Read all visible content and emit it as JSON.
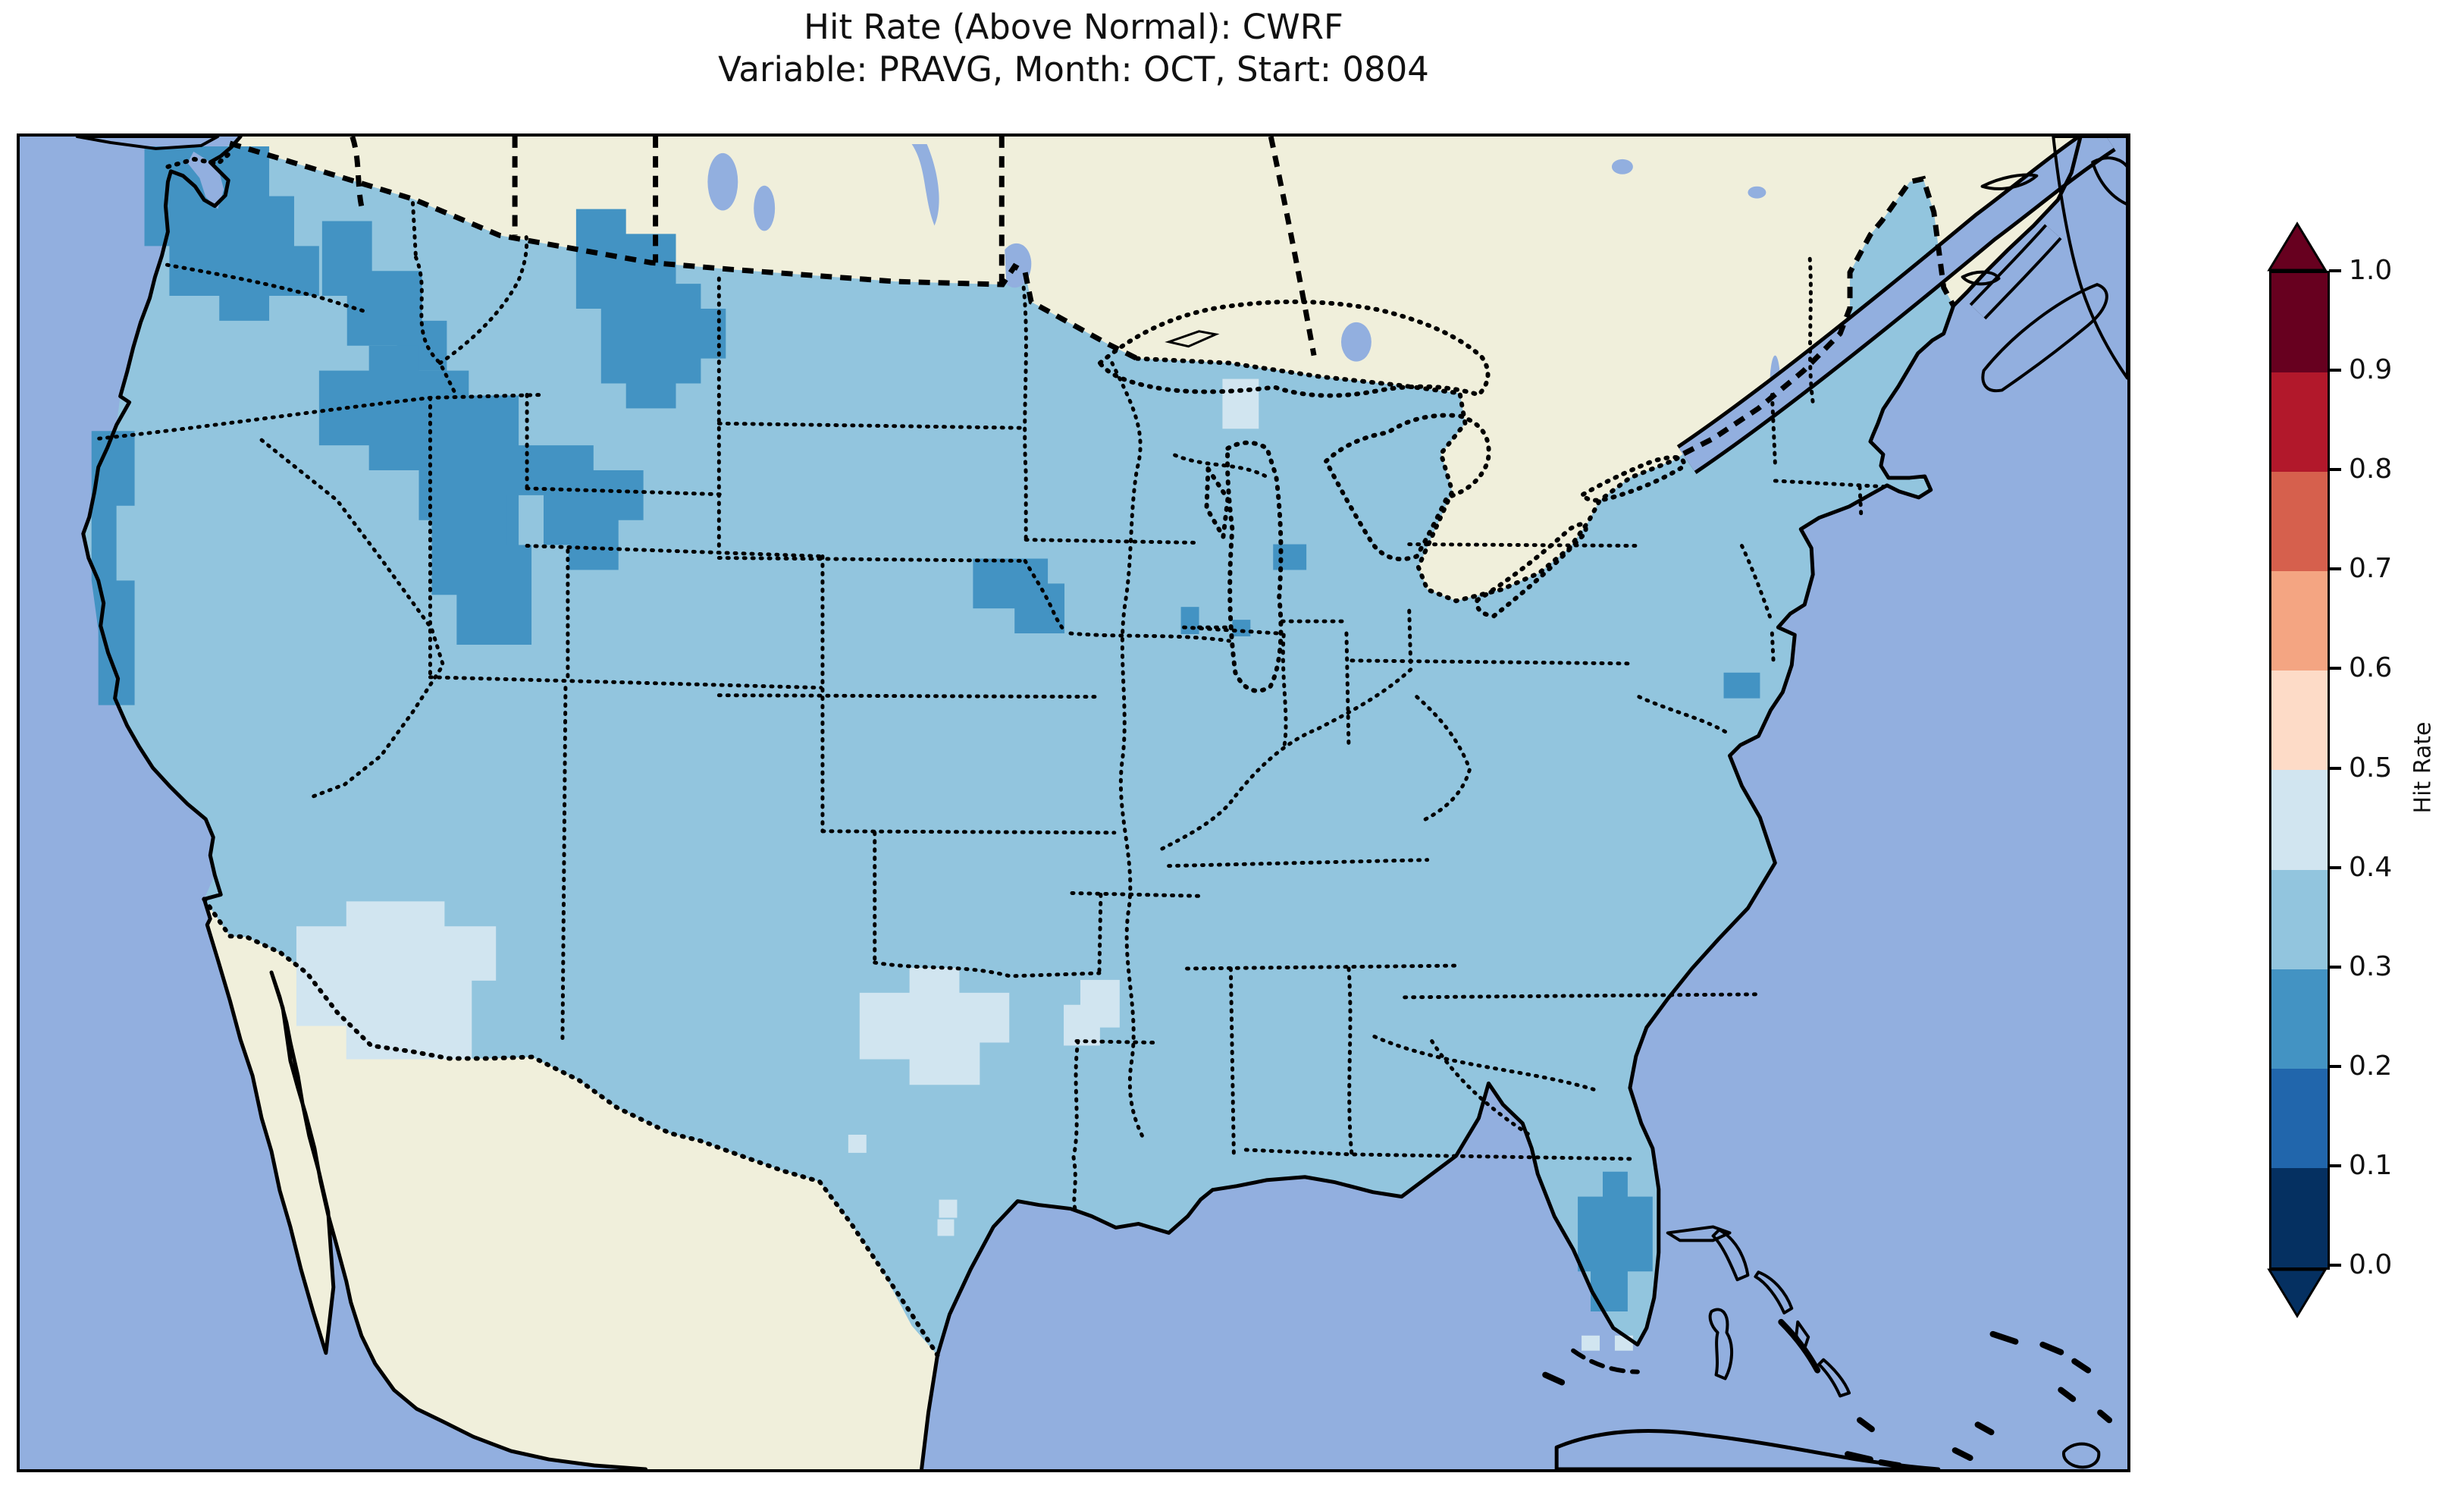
{
  "figure": {
    "title_line1": "Hit Rate (Above Normal): CWRF",
    "title_line2": "Variable: PRAVG, Month: OCT, Start: 0804"
  },
  "value_bins": [
    {
      "range": [
        0.0,
        0.1
      ],
      "color": "#053061"
    },
    {
      "range": [
        0.1,
        0.2
      ],
      "color": "#2166ac"
    },
    {
      "range": [
        0.2,
        0.3
      ],
      "color": "#4393c3"
    },
    {
      "range": [
        0.3,
        0.4
      ],
      "color": "#92c5de"
    },
    {
      "range": [
        0.4,
        0.5
      ],
      "color": "#d1e5f0"
    },
    {
      "range": [
        0.5,
        0.6
      ],
      "color": "#fddbc7"
    },
    {
      "range": [
        0.6,
        0.7
      ],
      "color": "#f4a582"
    },
    {
      "range": [
        0.7,
        0.8
      ],
      "color": "#d6604d"
    },
    {
      "range": [
        0.8,
        0.9
      ],
      "color": "#b2182b"
    },
    {
      "range": [
        0.9,
        1.0
      ],
      "color": "#67001f"
    }
  ],
  "colorbar": {
    "label": "Hit Rate",
    "tick_labels": [
      "1.0",
      "0.9",
      "0.8",
      "0.7",
      "0.6",
      "0.5",
      "0.4",
      "0.3",
      "0.2",
      "0.1",
      "0.0"
    ],
    "extend_over_color": "#67001f",
    "extend_under_color": "#053061"
  },
  "map": {
    "ocean_color": "#92afdf",
    "land_color": "#f0efdb",
    "coastline_color": "#000000",
    "state_border_style": "dotted",
    "country_border_style": "dashed"
  },
  "chart_data": {
    "type": "heatmap",
    "title": "Hit Rate (Above Normal): CWRF",
    "subtitle": "Variable: PRAVG, Month: OCT, Start: 0804",
    "model": "CWRF",
    "metric": "Hit Rate (Above Normal)",
    "variable": "PRAVG",
    "month": "OCT",
    "start": "0804",
    "region": "Continental United States",
    "colorbar_label": "Hit Rate",
    "value_range": [
      0.0,
      1.0
    ],
    "bin_width": 0.1,
    "colormap": "RdBu_r (discrete, 10 bins, extended both ends)",
    "legend_position": "right",
    "base_bin": [
      0.3,
      0.4
    ],
    "regions": [
      {
        "area": "Most of CONUS (Plains, Midwest, South, East Coast)",
        "hit_rate_bin": [
          0.3,
          0.4
        ]
      },
      {
        "area": "Western Washington / Cascades / Puget Sound",
        "hit_rate_bin": [
          0.2,
          0.3
        ]
      },
      {
        "area": "Northern Rockies: E Oregon, Idaho, W Montana diagonal band",
        "hit_rate_bin": [
          0.2,
          0.3
        ]
      },
      {
        "area": "Nevada-Utah border, Utah and SW Wyoming",
        "hit_rate_bin": [
          0.2,
          0.3
        ]
      },
      {
        "area": "S Oregon / N California coastal strip",
        "hit_rate_bin": [
          0.2,
          0.3
        ]
      },
      {
        "area": "SE South Dakota / NE Nebraska (Missouri River)",
        "hit_rate_bin": [
          0.2,
          0.3
        ]
      },
      {
        "area": "Central and South Florida",
        "hit_rate_bin": [
          0.2,
          0.3
        ]
      },
      {
        "area": "Small spots: N Indiana, C Illinois, Chesapeake Bay shore",
        "hit_rate_bin": [
          0.2,
          0.3
        ]
      },
      {
        "area": "Southern Arizona / SW New Mexico",
        "hit_rate_bin": [
          0.4,
          0.5
        ]
      },
      {
        "area": "North-central Texas / Red River area",
        "hit_rate_bin": [
          0.4,
          0.5
        ]
      },
      {
        "area": "Texas-Louisiana-Arkansas border region",
        "hit_rate_bin": [
          0.4,
          0.5
        ]
      },
      {
        "area": "Upper Peninsula of Michigan (small patch)",
        "hit_rate_bin": [
          0.4,
          0.5
        ]
      },
      {
        "area": "Canada and Mexico",
        "hit_rate_bin": null,
        "note": "no data - plain land fill"
      }
    ]
  }
}
